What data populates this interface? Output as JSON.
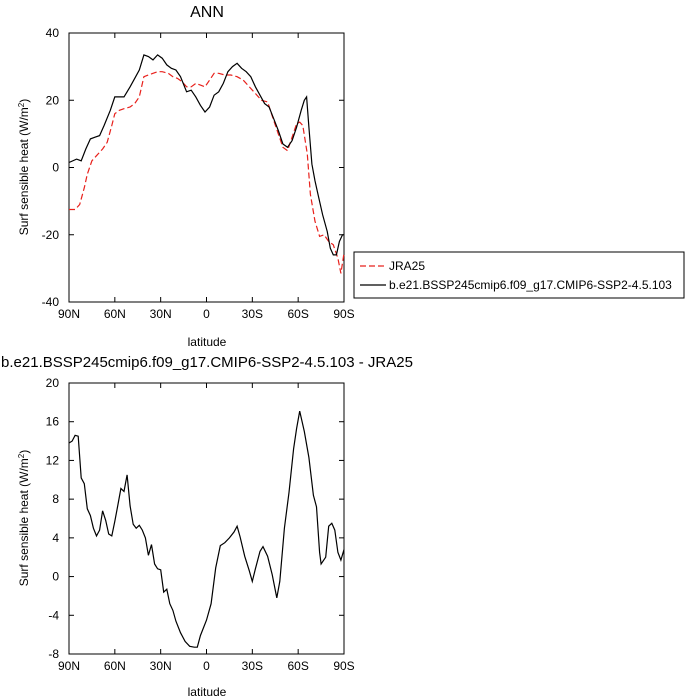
{
  "chart_data": [
    {
      "type": "line",
      "title": "ANN",
      "xlabel": "latitude",
      "ylabel": "Surf sensible heat (W/m²)",
      "ylabel_main": "Surf sensible heat (W/m",
      "ylabel_sup": "2",
      "ylabel_close": ")",
      "xlim": [
        90,
        -90
      ],
      "ylim": [
        -40,
        40
      ],
      "xticks": [
        90,
        60,
        30,
        0,
        -30,
        -60,
        -90
      ],
      "xtick_labels": [
        "90N",
        "60N",
        "30N",
        "0",
        "30S",
        "60S",
        "90S"
      ],
      "yticks": [
        -40,
        -20,
        0,
        20,
        40
      ],
      "ytick_labels": [
        "-40",
        "-20",
        "0",
        "20",
        "40"
      ],
      "legend_position": "right",
      "series": [
        {
          "name": "JRA25",
          "color": "#e8211c",
          "dash": "dashed",
          "points": [
            [
              90,
              -12.5
            ],
            [
              86,
              -12.5
            ],
            [
              83,
              -11
            ],
            [
              80,
              -6
            ],
            [
              78,
              -2
            ],
            [
              75,
              2
            ],
            [
              72,
              3.5
            ],
            [
              68,
              5.5
            ],
            [
              65,
              7.5
            ],
            [
              62,
              12.5
            ],
            [
              60,
              16
            ],
            [
              57,
              17
            ],
            [
              54,
              17.5
            ],
            [
              50,
              18
            ],
            [
              47,
              19
            ],
            [
              44,
              21
            ],
            [
              41,
              27
            ],
            [
              38,
              27.5
            ],
            [
              35,
              28
            ],
            [
              32,
              28.5
            ],
            [
              29,
              28.5
            ],
            [
              25,
              28
            ],
            [
              22,
              27
            ],
            [
              19,
              26.5
            ],
            [
              16,
              25.5
            ],
            [
              13,
              24
            ],
            [
              10,
              24
            ],
            [
              7,
              25
            ],
            [
              4,
              24.5
            ],
            [
              1,
              24
            ],
            [
              -2,
              26
            ],
            [
              -5,
              28
            ],
            [
              -8,
              28
            ],
            [
              -12,
              27.5
            ],
            [
              -16,
              27.5
            ],
            [
              -20,
              27
            ],
            [
              -24,
              26
            ],
            [
              -28,
              24
            ],
            [
              -32,
              22
            ],
            [
              -36,
              20
            ],
            [
              -40,
              19.5
            ],
            [
              -44,
              14
            ],
            [
              -47,
              10
            ],
            [
              -50,
              6
            ],
            [
              -53,
              5
            ],
            [
              -56,
              9
            ],
            [
              -59,
              13
            ],
            [
              -61,
              13.5
            ],
            [
              -63,
              12.5
            ],
            [
              -66,
              4
            ],
            [
              -68,
              -8
            ],
            [
              -71,
              -16
            ],
            [
              -74,
              -20.5
            ],
            [
              -77,
              -20
            ],
            [
              -80,
              -22
            ],
            [
              -83,
              -23
            ],
            [
              -86,
              -27
            ],
            [
              -88,
              -31.5
            ],
            [
              -90,
              -25.5
            ]
          ]
        },
        {
          "name": "b.e21.BSSP245cmip6.f09_g17.CMIP6-SSP2-4.5.103",
          "color": "#000000",
          "dash": "solid",
          "points": [
            [
              90,
              1.5
            ],
            [
              85,
              2.5
            ],
            [
              82,
              2
            ],
            [
              79,
              5.5
            ],
            [
              76,
              8.5
            ],
            [
              73,
              9
            ],
            [
              70,
              9.5
            ],
            [
              67,
              12.5
            ],
            [
              63,
              17
            ],
            [
              60,
              21
            ],
            [
              57,
              21
            ],
            [
              54,
              21
            ],
            [
              50,
              24
            ],
            [
              47,
              26.5
            ],
            [
              44,
              29
            ],
            [
              41,
              33.5
            ],
            [
              38,
              33
            ],
            [
              35,
              32
            ],
            [
              32,
              33.5
            ],
            [
              29,
              32.5
            ],
            [
              26,
              30.5
            ],
            [
              23,
              29.5
            ],
            [
              20,
              29
            ],
            [
              17,
              27
            ],
            [
              13,
              22.5
            ],
            [
              10,
              23
            ],
            [
              7,
              21
            ],
            [
              4,
              18.5
            ],
            [
              1,
              16.5
            ],
            [
              -2,
              18
            ],
            [
              -5,
              21.5
            ],
            [
              -8,
              22.5
            ],
            [
              -11,
              25
            ],
            [
              -14,
              28.5
            ],
            [
              -17,
              30
            ],
            [
              -20,
              31
            ],
            [
              -23,
              29.5
            ],
            [
              -26,
              28.5
            ],
            [
              -29,
              27
            ],
            [
              -32,
              24
            ],
            [
              -35,
              21.5
            ],
            [
              -38,
              19
            ],
            [
              -41,
              18
            ],
            [
              -44,
              14.5
            ],
            [
              -47,
              11
            ],
            [
              -50,
              7
            ],
            [
              -53,
              6
            ],
            [
              -56,
              8
            ],
            [
              -59,
              12
            ],
            [
              -62,
              17
            ],
            [
              -64,
              20
            ],
            [
              -65.5,
              21
            ],
            [
              -67,
              12
            ],
            [
              -69,
              1
            ],
            [
              -71,
              -4
            ],
            [
              -73,
              -8
            ],
            [
              -76,
              -14
            ],
            [
              -79,
              -19
            ],
            [
              -81,
              -24
            ],
            [
              -83,
              -26
            ],
            [
              -85,
              -26
            ],
            [
              -87,
              -22
            ],
            [
              -89,
              -20
            ],
            [
              -90,
              -20
            ]
          ]
        }
      ]
    },
    {
      "type": "line",
      "title": "b.e21.BSSP245cmip6.f09_g17.CMIP6-SSP2-4.5.103 - JRA25",
      "xlabel": "latitude",
      "ylabel": "Surf sensible heat (W/m²)",
      "ylabel_main": "Surf sensible heat (W/m",
      "ylabel_sup": "2",
      "ylabel_close": ")",
      "xlim": [
        90,
        -90
      ],
      "ylim": [
        -8,
        20
      ],
      "xticks": [
        90,
        60,
        30,
        0,
        -30,
        -60,
        -90
      ],
      "xtick_labels": [
        "90N",
        "60N",
        "30N",
        "0",
        "30S",
        "60S",
        "90S"
      ],
      "yticks": [
        -8,
        -4,
        0,
        4,
        8,
        12,
        16,
        20
      ],
      "ytick_labels": [
        "-8",
        "-4",
        "0",
        "4",
        "8",
        "12",
        "16",
        "20"
      ],
      "series": [
        {
          "color": "#000000",
          "dash": "solid",
          "points": [
            [
              90,
              13.8
            ],
            [
              88,
              14
            ],
            [
              86,
              14.6
            ],
            [
              84,
              14.5
            ],
            [
              82,
              10.2
            ],
            [
              80,
              9.6
            ],
            [
              78,
              7
            ],
            [
              76,
              6.3
            ],
            [
              74,
              5
            ],
            [
              72,
              4.2
            ],
            [
              70,
              4.8
            ],
            [
              68,
              6.8
            ],
            [
              66,
              5.8
            ],
            [
              64,
              4.4
            ],
            [
              62,
              4.2
            ],
            [
              60,
              5.7
            ],
            [
              58,
              7.4
            ],
            [
              56,
              9.1
            ],
            [
              54,
              8.8
            ],
            [
              52,
              10.5
            ],
            [
              50,
              7.3
            ],
            [
              48,
              5.4
            ],
            [
              46,
              5
            ],
            [
              44,
              5.3
            ],
            [
              42,
              4.8
            ],
            [
              40,
              4
            ],
            [
              38,
              2.2
            ],
            [
              36,
              3.3
            ],
            [
              34,
              1.3
            ],
            [
              32,
              0.8
            ],
            [
              30,
              0.7
            ],
            [
              28,
              -1.6
            ],
            [
              26,
              -1.3
            ],
            [
              24,
              -2.8
            ],
            [
              22,
              -3.5
            ],
            [
              20,
              -4.6
            ],
            [
              17,
              -5.8
            ],
            [
              14,
              -6.7
            ],
            [
              11,
              -7.2
            ],
            [
              8,
              -7.3
            ],
            [
              6,
              -7.3
            ],
            [
              4,
              -6.1
            ],
            [
              0,
              -4.5
            ],
            [
              -3,
              -2.8
            ],
            [
              -6,
              0.9
            ],
            [
              -9,
              3.2
            ],
            [
              -12,
              3.5
            ],
            [
              -15,
              4
            ],
            [
              -18,
              4.6
            ],
            [
              -20,
              5.2
            ],
            [
              -22,
              4.1
            ],
            [
              -25,
              2.1
            ],
            [
              -28,
              0.6
            ],
            [
              -30,
              -0.5
            ],
            [
              -32,
              0.8
            ],
            [
              -35,
              2.6
            ],
            [
              -37,
              3.1
            ],
            [
              -40,
              2.1
            ],
            [
              -43,
              0.2
            ],
            [
              -46,
              -2.2
            ],
            [
              -48,
              -0.5
            ],
            [
              -51,
              5
            ],
            [
              -54,
              8.7
            ],
            [
              -57,
              13.2
            ],
            [
              -59,
              15.3
            ],
            [
              -61,
              17.1
            ],
            [
              -64,
              15
            ],
            [
              -67,
              12.3
            ],
            [
              -70,
              8.4
            ],
            [
              -72,
              7.2
            ],
            [
              -74,
              2.5
            ],
            [
              -75,
              1.3
            ],
            [
              -78,
              2
            ],
            [
              -80,
              5.2
            ],
            [
              -82,
              5.5
            ],
            [
              -84,
              4.8
            ],
            [
              -86,
              2.5
            ],
            [
              -88,
              1.7
            ],
            [
              -90,
              2.8
            ]
          ]
        }
      ]
    }
  ]
}
